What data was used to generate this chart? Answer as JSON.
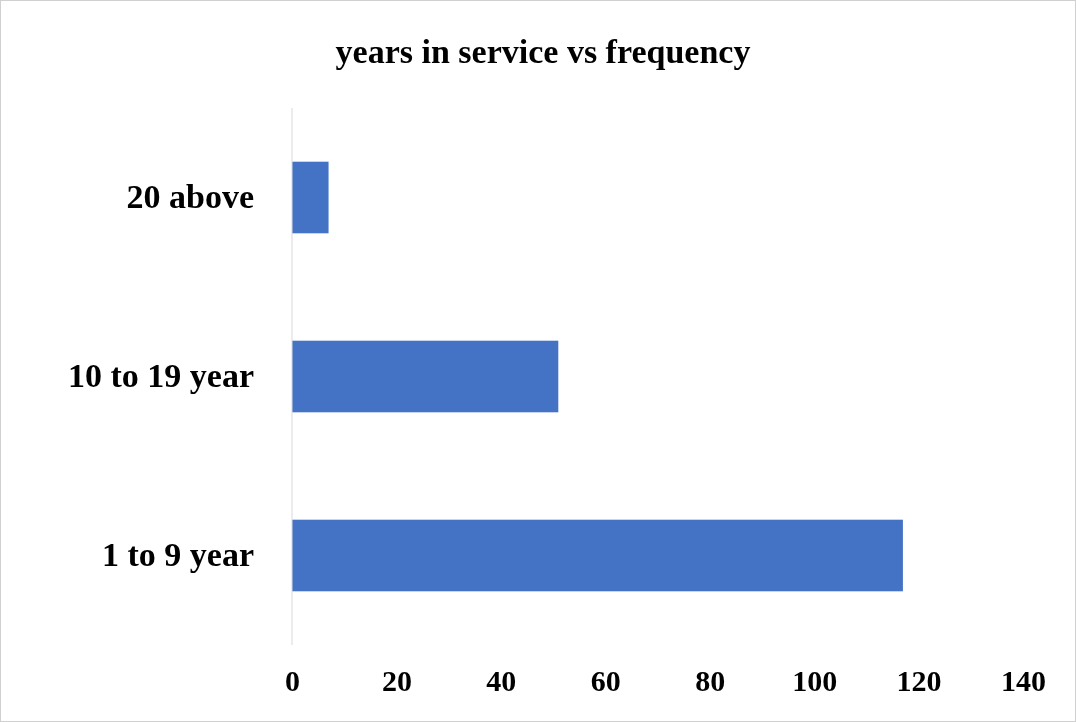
{
  "chart_data": {
    "type": "bar",
    "orientation": "horizontal",
    "title": "years in service vs frequency",
    "categories": [
      "20 above",
      "10 to 19 year",
      "1 to 9 year"
    ],
    "values": [
      7,
      51,
      117
    ],
    "color": "#4472c4",
    "xlim": [
      0,
      140
    ],
    "xticks": [
      0,
      20,
      40,
      60,
      80,
      100,
      120,
      140
    ],
    "grid": false
  }
}
